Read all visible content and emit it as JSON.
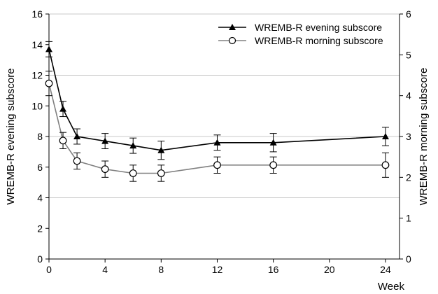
{
  "chart_data": {
    "type": "line",
    "xlabel": "Week",
    "ylabel_left": "WREMB-R evening subscore",
    "ylabel_right": "WREMB-R morning subscore",
    "xlim": [
      0,
      25
    ],
    "ylim_left": [
      0,
      16
    ],
    "ylim_right": [
      0,
      6
    ],
    "x_ticks": [
      0,
      4,
      8,
      12,
      16,
      20,
      24
    ],
    "y_ticks_left": [
      0,
      2,
      4,
      6,
      8,
      10,
      12,
      14,
      16
    ],
    "y_ticks_right": [
      0,
      1,
      2,
      3,
      4,
      5,
      6
    ],
    "gridlines_left": [
      4,
      8,
      12,
      16
    ],
    "grid": "horizontal",
    "legend_position": "top-right",
    "series": [
      {
        "name": "WREMB-R evening subscore",
        "axis": "left",
        "marker": "filled-triangle",
        "color": "#000000",
        "x": [
          0,
          1,
          2,
          4,
          6,
          8,
          12,
          16,
          24
        ],
        "y": [
          13.7,
          9.8,
          8.0,
          7.7,
          7.4,
          7.1,
          7.6,
          7.6,
          8.0
        ],
        "err": [
          0.5,
          0.5,
          0.5,
          0.5,
          0.5,
          0.6,
          0.5,
          0.6,
          0.6
        ]
      },
      {
        "name": "WREMB-R morning subscore",
        "axis": "right",
        "marker": "open-circle",
        "color": "#808080",
        "x": [
          0,
          1,
          2,
          4,
          6,
          8,
          12,
          16,
          24
        ],
        "y": [
          4.3,
          2.9,
          2.4,
          2.2,
          2.1,
          2.1,
          2.3,
          2.3,
          2.3
        ],
        "err": [
          0.3,
          0.2,
          0.2,
          0.2,
          0.2,
          0.2,
          0.2,
          0.2,
          0.3
        ]
      }
    ]
  }
}
